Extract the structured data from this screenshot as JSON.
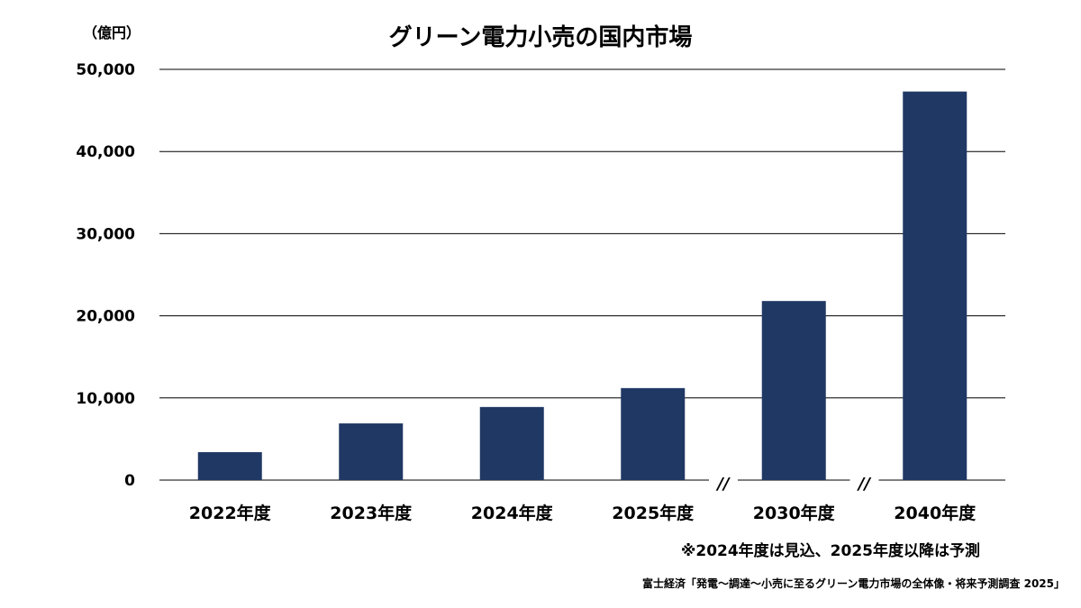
{
  "chart_data": {
    "type": "bar",
    "title": "グリーン電力小売の国内市場",
    "unit_label": "（億円）",
    "categories": [
      "2022年度",
      "2023年度",
      "2024年度",
      "2025年度",
      "2030年度",
      "2040年度"
    ],
    "values": [
      3400,
      6900,
      8900,
      11200,
      21800,
      47300
    ],
    "ylim": [
      0,
      50000
    ],
    "yticks": [
      "0",
      "10,000",
      "20,000",
      "30,000",
      "40,000",
      "50,000"
    ],
    "grid": true,
    "axis_breaks": [
      "//",
      "//"
    ],
    "bar_color": "#203864",
    "note": "※2024年度は見込、2025年度以降は予測",
    "source": "富士経済「発電～調達～小売に至るグリーン電力市場の全体像・将来予測調査 2025」"
  }
}
